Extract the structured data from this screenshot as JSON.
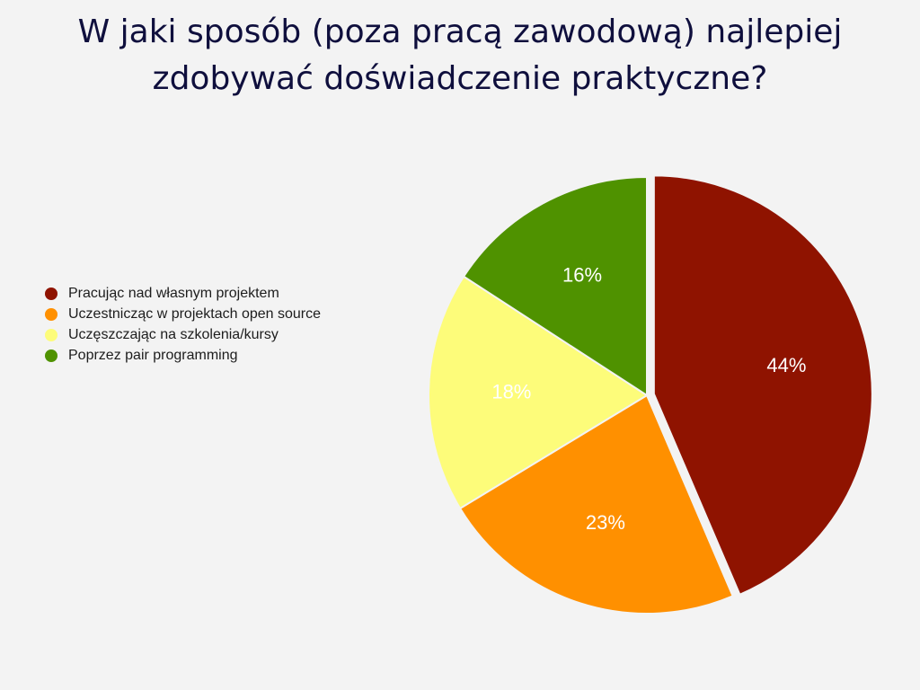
{
  "chart_data": {
    "type": "pie",
    "title_lines": [
      "W jaki sposób (poza pracą zawodową) najlepiej",
      "zdobywać doświadczenie praktyczne?"
    ],
    "categories": [
      "Pracując nad własnym projektem",
      "Uczestnicząc w projektach open source",
      "Uczęszczając na szkolenia/kursy",
      "Poprzez pair programming"
    ],
    "values": [
      44,
      23,
      18,
      16
    ],
    "value_labels": [
      "44%",
      "23%",
      "18%",
      "16%"
    ],
    "colors": [
      "#8f1300",
      "#ff9000",
      "#fdfc7a",
      "#4f9200"
    ],
    "label_colors": [
      "#ffffff",
      "#ffffff",
      "#ffffff",
      "#ffffff"
    ],
    "exploded": [
      true,
      false,
      false,
      false
    ],
    "legend_position": "left"
  }
}
